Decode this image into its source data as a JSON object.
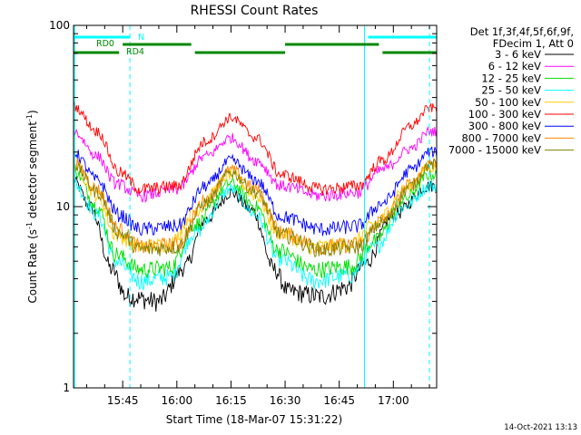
{
  "chart_data": {
    "type": "line",
    "title": "RHESSI Count Rates",
    "xlabel": "Start Time (18-Mar-07 15:31:22)",
    "ylabel": "Count Rate (s",
    "ylabel_sup1": "-1",
    "ylabel_mid": " detector segment",
    "ylabel_sup2": "-1",
    "ylabel_end": ")",
    "y_scale": "log",
    "ylim": [
      1,
      100
    ],
    "y_ticks": [
      {
        "value": 1,
        "label": "1"
      },
      {
        "value": 10,
        "label": "10"
      },
      {
        "value": 100,
        "label": "100"
      }
    ],
    "xlim": [
      "15:31:22",
      "17:12:00"
    ],
    "x_ticks": [
      {
        "value": "15:45",
        "label": "15:45"
      },
      {
        "value": "16:00",
        "label": "16:00"
      },
      {
        "value": "16:15",
        "label": "16:15"
      },
      {
        "value": "16:30",
        "label": "16:30"
      },
      {
        "value": "16:45",
        "label": "16:45"
      },
      {
        "value": "17:00",
        "label": "17:00"
      }
    ],
    "legend_header": [
      "Det 1f,3f,4f,5f,6f,9f,",
      "FDecim 1, Att 0"
    ],
    "legend_position": "right",
    "series": [
      {
        "name": "3 - 6 keV",
        "color": "#000000",
        "points": [
          [
            "15:31:22",
            14
          ],
          [
            "15:36",
            10
          ],
          [
            "15:42",
            4.5
          ],
          [
            "15:46",
            3.2
          ],
          [
            "15:55",
            3.0
          ],
          [
            "16:02",
            4.6
          ],
          [
            "16:08",
            8.5
          ],
          [
            "16:15",
            12
          ],
          [
            "16:21",
            9.5
          ],
          [
            "16:27",
            4.5
          ],
          [
            "16:31",
            3.4
          ],
          [
            "16:40",
            3.2
          ],
          [
            "16:47",
            3.6
          ],
          [
            "16:52",
            4.8
          ],
          [
            "17:00",
            9
          ],
          [
            "17:10",
            13
          ]
        ]
      },
      {
        "name": "6 - 12 keV",
        "color": "#ff00ff",
        "points": [
          [
            "15:31:22",
            26
          ],
          [
            "15:38",
            19
          ],
          [
            "15:43",
            13.5
          ],
          [
            "15:50",
            11.5
          ],
          [
            "16:00",
            12.5
          ],
          [
            "16:08",
            19
          ],
          [
            "16:15",
            24
          ],
          [
            "16:22",
            18
          ],
          [
            "16:29",
            13
          ],
          [
            "16:40",
            11.5
          ],
          [
            "16:50",
            12
          ],
          [
            "16:57",
            16
          ],
          [
            "17:05",
            21
          ],
          [
            "17:10",
            26
          ]
        ]
      },
      {
        "name": "12 - 25 keV",
        "color": "#00dd00",
        "points": [
          [
            "15:31:22",
            16
          ],
          [
            "15:38",
            10
          ],
          [
            "15:43",
            5.5
          ],
          [
            "15:50",
            4.5
          ],
          [
            "15:58",
            4.6
          ],
          [
            "16:05",
            8
          ],
          [
            "16:15",
            13.5
          ],
          [
            "16:22",
            10
          ],
          [
            "16:28",
            5.8
          ],
          [
            "16:38",
            4.5
          ],
          [
            "16:48",
            4.7
          ],
          [
            "16:55",
            6.5
          ],
          [
            "17:03",
            11
          ],
          [
            "17:10",
            15
          ]
        ]
      },
      {
        "name": "25 - 50 keV",
        "color": "#00ffff",
        "points": [
          [
            "15:31:22",
            13.5
          ],
          [
            "15:38",
            9
          ],
          [
            "15:43",
            5
          ],
          [
            "15:50",
            3.9
          ],
          [
            "15:58",
            4.1
          ],
          [
            "16:05",
            7.2
          ],
          [
            "16:15",
            12.5
          ],
          [
            "16:22",
            9
          ],
          [
            "16:28",
            5.2
          ],
          [
            "16:38",
            3.9
          ],
          [
            "16:48",
            4.2
          ],
          [
            "16:55",
            6
          ],
          [
            "17:03",
            10
          ],
          [
            "17:10",
            13
          ]
        ]
      },
      {
        "name": "50 - 100 keV",
        "color": "#ffcc00",
        "points": [
          [
            "15:31:22",
            17
          ],
          [
            "15:38",
            11.5
          ],
          [
            "15:43",
            7
          ],
          [
            "15:50",
            6
          ],
          [
            "15:58",
            6.2
          ],
          [
            "16:05",
            9.5
          ],
          [
            "16:15",
            15
          ],
          [
            "16:22",
            11.5
          ],
          [
            "16:28",
            7.2
          ],
          [
            "16:38",
            6
          ],
          [
            "16:48",
            6.2
          ],
          [
            "16:55",
            8
          ],
          [
            "17:03",
            12.5
          ],
          [
            "17:10",
            16.5
          ]
        ]
      },
      {
        "name": "100 - 300 keV",
        "color": "#ff0000",
        "points": [
          [
            "15:31:22",
            36
          ],
          [
            "15:38",
            26
          ],
          [
            "15:44",
            15.5
          ],
          [
            "15:50",
            12.5
          ],
          [
            "16:00",
            13
          ],
          [
            "16:08",
            23
          ],
          [
            "16:15",
            31
          ],
          [
            "16:22",
            24
          ],
          [
            "16:29",
            15
          ],
          [
            "16:40",
            12.5
          ],
          [
            "16:50",
            13
          ],
          [
            "16:57",
            18
          ],
          [
            "17:05",
            28
          ],
          [
            "17:10",
            35
          ]
        ]
      },
      {
        "name": "300 - 800 keV",
        "color": "#0000ff",
        "points": [
          [
            "15:31:22",
            20
          ],
          [
            "15:38",
            14
          ],
          [
            "15:44",
            9
          ],
          [
            "15:50",
            7.5
          ],
          [
            "16:00",
            7.8
          ],
          [
            "16:08",
            13
          ],
          [
            "16:15",
            18
          ],
          [
            "16:22",
            14
          ],
          [
            "16:29",
            8.8
          ],
          [
            "16:40",
            7.5
          ],
          [
            "16:50",
            7.8
          ],
          [
            "16:57",
            10.5
          ],
          [
            "17:05",
            16
          ],
          [
            "17:10",
            20
          ]
        ]
      },
      {
        "name": "800 - 7000 keV",
        "color": "#ff8800",
        "points": [
          [
            "15:31:22",
            18
          ],
          [
            "15:38",
            12.5
          ],
          [
            "15:44",
            7.5
          ],
          [
            "15:50",
            6
          ],
          [
            "16:00",
            6.2
          ],
          [
            "16:08",
            11
          ],
          [
            "16:15",
            16
          ],
          [
            "16:22",
            12.5
          ],
          [
            "16:29",
            7.2
          ],
          [
            "16:40",
            6
          ],
          [
            "16:50",
            6.2
          ],
          [
            "16:57",
            8.5
          ],
          [
            "17:05",
            13.5
          ],
          [
            "17:10",
            17.5
          ]
        ]
      },
      {
        "name": "7000 - 15000 keV",
        "color": "#808000",
        "points": [
          [
            "15:31:22",
            17
          ],
          [
            "15:38",
            12
          ],
          [
            "15:44",
            7.2
          ],
          [
            "15:50",
            5.8
          ],
          [
            "16:00",
            6
          ],
          [
            "16:08",
            10.5
          ],
          [
            "16:15",
            15.5
          ],
          [
            "16:22",
            12
          ],
          [
            "16:29",
            7
          ],
          [
            "16:40",
            5.8
          ],
          [
            "16:50",
            6
          ],
          [
            "16:57",
            8.2
          ],
          [
            "17:05",
            13
          ],
          [
            "17:10",
            17
          ]
        ]
      }
    ],
    "flag_bars": [
      {
        "label": "N",
        "color": "#00ffff",
        "y_level": 1,
        "segments": [
          [
            "15:31:22",
            "15:47"
          ],
          [
            "16:53",
            "17:12"
          ]
        ]
      },
      {
        "label": "RD0",
        "color": "#008800",
        "y_level": 2,
        "segments": [
          [
            "15:45",
            "16:04"
          ],
          [
            "16:30",
            "16:56"
          ]
        ]
      },
      {
        "label": "RD4",
        "color": "#008800",
        "y_level": 3,
        "segments": [
          [
            "15:31:22",
            "15:44"
          ],
          [
            "16:05",
            "16:30"
          ],
          [
            "16:57",
            "17:12"
          ]
        ]
      }
    ],
    "vertical_markers": [
      {
        "time": "15:31:40",
        "color": "#00ffff",
        "style": "solid"
      },
      {
        "time": "15:47",
        "color": "#00ffff",
        "style": "dashed"
      },
      {
        "time": "16:52",
        "color": "#00ffff",
        "style": "solid"
      },
      {
        "time": "17:10",
        "color": "#00ffff",
        "style": "dashed"
      }
    ],
    "timestamp": "14-Oct-2021 13:13"
  }
}
